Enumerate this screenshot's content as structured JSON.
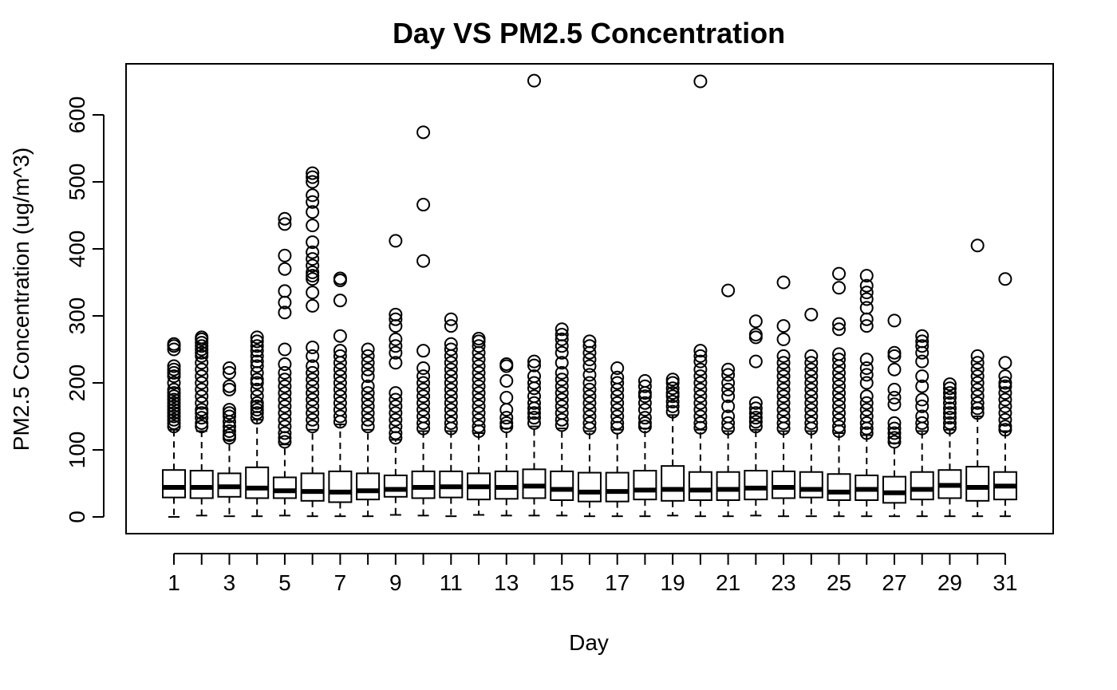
{
  "chart_data": {
    "type": "boxplot",
    "title": "Day VS PM2.5 Concentration",
    "xlabel": "Day",
    "ylabel": "PM2.5 Concentration (ug/m^3)",
    "ylim": [
      0,
      650
    ],
    "y_ticks": [
      0,
      100,
      200,
      300,
      400,
      500,
      600
    ],
    "x_tick_labels": [
      "1",
      "3",
      "5",
      "7",
      "9",
      "11",
      "13",
      "15",
      "17",
      "19",
      "21",
      "23",
      "25",
      "27",
      "29",
      "31"
    ],
    "categories": [
      "1",
      "2",
      "3",
      "4",
      "5",
      "6",
      "7",
      "8",
      "9",
      "10",
      "11",
      "12",
      "13",
      "14",
      "15",
      "16",
      "17",
      "18",
      "19",
      "20",
      "21",
      "22",
      "23",
      "24",
      "25",
      "26",
      "27",
      "28",
      "29",
      "30",
      "31"
    ],
    "boxes": [
      {
        "day": "1",
        "min": 0,
        "q1": 29,
        "median": 44,
        "q3": 70,
        "max": 130,
        "outliers": [
          135,
          140,
          145,
          150,
          155,
          160,
          165,
          170,
          175,
          180,
          185,
          190,
          200,
          210,
          215,
          220,
          225,
          250,
          255,
          258
        ]
      },
      {
        "day": "2",
        "min": 2,
        "q1": 28,
        "median": 44,
        "q3": 69,
        "max": 128,
        "outliers": [
          135,
          140,
          148,
          155,
          160,
          170,
          180,
          190,
          200,
          210,
          220,
          230,
          240,
          245,
          250,
          255,
          260,
          265,
          268
        ]
      },
      {
        "day": "3",
        "min": 1,
        "q1": 30,
        "median": 45,
        "q3": 65,
        "max": 115,
        "outliers": [
          118,
          122,
          128,
          135,
          142,
          150,
          155,
          160,
          190,
          195,
          215,
          222
        ]
      },
      {
        "day": "4",
        "min": 1,
        "q1": 28,
        "median": 43,
        "q3": 74,
        "max": 145,
        "outliers": [
          148,
          155,
          160,
          165,
          170,
          180,
          190,
          200,
          205,
          215,
          225,
          232,
          240,
          248,
          255,
          262,
          268
        ]
      },
      {
        "day": "5",
        "min": 2,
        "q1": 28,
        "median": 39,
        "q3": 59,
        "max": 108,
        "outliers": [
          112,
          118,
          125,
          135,
          145,
          155,
          165,
          175,
          185,
          195,
          205,
          215,
          228,
          250,
          305,
          320,
          337,
          370,
          390,
          437,
          445
        ]
      },
      {
        "day": "6",
        "min": 1,
        "q1": 24,
        "median": 38,
        "q3": 65,
        "max": 130,
        "outliers": [
          135,
          145,
          155,
          165,
          175,
          185,
          195,
          205,
          215,
          225,
          240,
          253,
          315,
          335,
          355,
          360,
          365,
          375,
          385,
          395,
          410,
          435,
          455,
          470,
          480,
          500,
          507,
          513
        ]
      },
      {
        "day": "7",
        "min": 1,
        "q1": 22,
        "median": 37,
        "q3": 68,
        "max": 138,
        "outliers": [
          142,
          150,
          160,
          170,
          180,
          190,
          200,
          210,
          220,
          230,
          240,
          248,
          270,
          323,
          353,
          356
        ]
      },
      {
        "day": "8",
        "min": 1,
        "q1": 26,
        "median": 39,
        "q3": 65,
        "max": 130,
        "outliers": [
          135,
          145,
          155,
          165,
          175,
          185,
          195,
          210,
          220,
          230,
          240,
          250
        ]
      },
      {
        "day": "9",
        "min": 3,
        "q1": 30,
        "median": 41,
        "q3": 62,
        "max": 115,
        "outliers": [
          118,
          125,
          135,
          145,
          155,
          165,
          175,
          185,
          230,
          245,
          255,
          265,
          285,
          295,
          302,
          412
        ]
      },
      {
        "day": "10",
        "min": 2,
        "q1": 28,
        "median": 44,
        "q3": 68,
        "max": 128,
        "outliers": [
          132,
          140,
          150,
          160,
          170,
          180,
          190,
          200,
          210,
          222,
          248,
          382,
          466,
          574
        ]
      },
      {
        "day": "11",
        "min": 1,
        "q1": 29,
        "median": 45,
        "q3": 68,
        "max": 128,
        "outliers": [
          132,
          140,
          150,
          160,
          170,
          180,
          190,
          200,
          210,
          220,
          230,
          240,
          250,
          258,
          285,
          295
        ]
      },
      {
        "day": "12",
        "min": 3,
        "q1": 26,
        "median": 45,
        "q3": 65,
        "max": 125,
        "outliers": [
          128,
          135,
          145,
          155,
          165,
          175,
          185,
          195,
          205,
          215,
          225,
          235,
          245,
          255,
          262,
          266
        ]
      },
      {
        "day": "13",
        "min": 2,
        "q1": 27,
        "median": 44,
        "q3": 68,
        "max": 132,
        "outliers": [
          135,
          140,
          148,
          160,
          178,
          203,
          225,
          228
        ]
      },
      {
        "day": "14",
        "min": 2,
        "q1": 28,
        "median": 46,
        "q3": 71,
        "max": 135,
        "outliers": [
          140,
          148,
          155,
          162,
          170,
          180,
          192,
          200,
          210,
          226,
          232,
          651
        ]
      },
      {
        "day": "15",
        "min": 2,
        "q1": 25,
        "median": 41,
        "q3": 68,
        "max": 132,
        "outliers": [
          137,
          145,
          155,
          165,
          175,
          185,
          195,
          205,
          215,
          230,
          245,
          255,
          265,
          272,
          280
        ]
      },
      {
        "day": "16",
        "min": 1,
        "q1": 23,
        "median": 37,
        "q3": 66,
        "max": 128,
        "outliers": [
          132,
          140,
          150,
          160,
          170,
          180,
          190,
          200,
          212,
          225,
          235,
          245,
          255,
          262
        ]
      },
      {
        "day": "17",
        "min": 1,
        "q1": 23,
        "median": 38,
        "q3": 66,
        "max": 130,
        "outliers": [
          133,
          140,
          150,
          160,
          170,
          180,
          190,
          200,
          208,
          222
        ]
      },
      {
        "day": "18",
        "min": 1,
        "q1": 26,
        "median": 40,
        "q3": 69,
        "max": 132,
        "outliers": [
          135,
          140,
          148,
          160,
          170,
          180,
          185,
          195,
          203
        ]
      },
      {
        "day": "19",
        "min": 2,
        "q1": 24,
        "median": 41,
        "q3": 76,
        "max": 152,
        "outliers": [
          157,
          165,
          172,
          180,
          185,
          192,
          200,
          205
        ]
      },
      {
        "day": "20",
        "min": 1,
        "q1": 25,
        "median": 40,
        "q3": 67,
        "max": 130,
        "outliers": [
          133,
          140,
          150,
          160,
          170,
          180,
          190,
          200,
          210,
          220,
          232,
          240,
          248,
          650
        ]
      },
      {
        "day": "21",
        "min": 1,
        "q1": 25,
        "median": 41,
        "q3": 67,
        "max": 128,
        "outliers": [
          132,
          140,
          150,
          165,
          180,
          190,
          200,
          212,
          220,
          338
        ]
      },
      {
        "day": "22",
        "min": 2,
        "q1": 26,
        "median": 43,
        "q3": 69,
        "max": 130,
        "outliers": [
          135,
          142,
          148,
          155,
          162,
          170,
          232,
          268,
          272,
          292
        ]
      },
      {
        "day": "23",
        "min": 1,
        "q1": 28,
        "median": 44,
        "q3": 68,
        "max": 128,
        "outliers": [
          132,
          140,
          150,
          160,
          170,
          180,
          190,
          200,
          210,
          220,
          230,
          240,
          265,
          285,
          350
        ]
      },
      {
        "day": "24",
        "min": 1,
        "q1": 29,
        "median": 41,
        "q3": 67,
        "max": 128,
        "outliers": [
          132,
          140,
          150,
          160,
          170,
          180,
          190,
          200,
          210,
          220,
          230,
          240,
          302
        ]
      },
      {
        "day": "25",
        "min": 1,
        "q1": 25,
        "median": 37,
        "q3": 64,
        "max": 125,
        "outliers": [
          128,
          135,
          145,
          155,
          165,
          175,
          185,
          195,
          205,
          215,
          225,
          235,
          243,
          280,
          288,
          342,
          363
        ]
      },
      {
        "day": "26",
        "min": 1,
        "q1": 25,
        "median": 41,
        "q3": 62,
        "max": 122,
        "outliers": [
          125,
          132,
          140,
          150,
          160,
          170,
          180,
          200,
          212,
          222,
          235,
          285,
          295,
          312,
          325,
          335,
          345,
          360
        ]
      },
      {
        "day": "27",
        "min": 1,
        "q1": 21,
        "median": 36,
        "q3": 60,
        "max": 110,
        "outliers": [
          112,
          118,
          125,
          132,
          140,
          168,
          178,
          190,
          220,
          240,
          245,
          293
        ]
      },
      {
        "day": "28",
        "min": 1,
        "q1": 26,
        "median": 41,
        "q3": 67,
        "max": 128,
        "outliers": [
          132,
          140,
          150,
          165,
          175,
          195,
          210,
          232,
          245,
          255,
          262,
          270
        ]
      },
      {
        "day": "29",
        "min": 1,
        "q1": 28,
        "median": 47,
        "q3": 70,
        "max": 130,
        "outliers": [
          133,
          140,
          148,
          155,
          162,
          170,
          178,
          185,
          192,
          198
        ]
      },
      {
        "day": "30",
        "min": 1,
        "q1": 24,
        "median": 44,
        "q3": 75,
        "max": 150,
        "outliers": [
          155,
          162,
          170,
          180,
          190,
          200,
          210,
          220,
          230,
          240,
          405
        ]
      },
      {
        "day": "31",
        "min": 1,
        "q1": 26,
        "median": 46,
        "q3": 67,
        "max": 128,
        "outliers": [
          130,
          135,
          145,
          155,
          165,
          175,
          185,
          195,
          200,
          210,
          230,
          355
        ]
      }
    ]
  }
}
